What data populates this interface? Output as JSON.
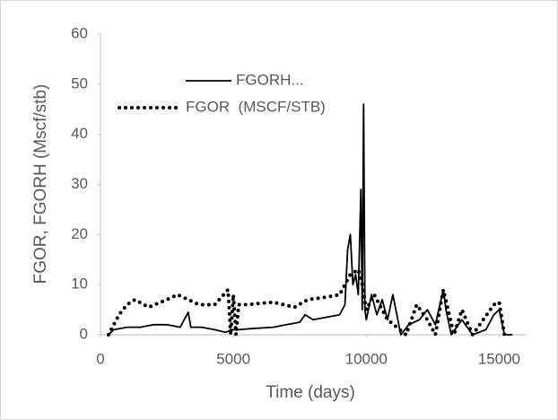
{
  "chart_data": {
    "type": "line",
    "xlabel": "Time (days)",
    "ylabel": "FGOR, FGORH (Mscf/stb)",
    "xlim": [
      0,
      16000
    ],
    "xticks": [
      0,
      5000,
      10000,
      15000
    ],
    "ylim": [
      0,
      60
    ],
    "yticks": [
      0,
      10,
      20,
      30,
      40,
      50,
      60
    ],
    "grid": false,
    "series": [
      {
        "name": "FGORH...",
        "color": "#000000",
        "dash": "solid",
        "x": [
          300,
          500,
          1000,
          1500,
          2000,
          2500,
          3000,
          3300,
          3400,
          3800,
          4300,
          4700,
          5000,
          5200,
          5600,
          6500,
          7000,
          7500,
          7700,
          8000,
          8500,
          9000,
          9200,
          9300,
          9400,
          9500,
          9600,
          9700,
          9800,
          9850,
          9900,
          9950,
          10000,
          10200,
          10400,
          10600,
          10800,
          11000,
          11300,
          11600,
          12000,
          12300,
          12600,
          12900,
          13000,
          13200,
          13600,
          14000,
          14500,
          14800,
          15000,
          15200,
          15500
        ],
        "values": [
          0,
          1,
          1.5,
          1.5,
          2,
          2,
          1.5,
          4.5,
          1.5,
          1.5,
          1,
          0.5,
          1,
          1,
          1.2,
          1.5,
          2,
          2.5,
          4,
          3,
          3.5,
          4,
          6,
          17,
          20,
          10,
          12,
          8,
          29,
          5,
          46,
          5,
          3,
          8,
          4,
          7,
          3,
          8,
          0,
          2,
          3,
          5,
          2,
          9,
          5,
          0,
          3,
          0,
          1,
          4,
          5,
          0,
          0
        ]
      },
      {
        "name": "FGOR  (MSCF/STB)",
        "color": "#000000",
        "dash": "dotted",
        "x": [
          300,
          500,
          700,
          1000,
          1300,
          1800,
          2500,
          2900,
          3300,
          3700,
          4300,
          4800,
          4900,
          5000,
          5100,
          5200,
          5500,
          6500,
          7300,
          7800,
          8500,
          9000,
          9400,
          9700,
          9850,
          10000,
          10300,
          10800,
          11500,
          11900,
          12300,
          12600,
          12900,
          13300,
          13600,
          14000,
          14400,
          14800,
          15000,
          15200
        ],
        "values": [
          0,
          2,
          4,
          6,
          7,
          5.5,
          7,
          8,
          7,
          6,
          6,
          9,
          0,
          8,
          0,
          6,
          6,
          6.5,
          5.5,
          7,
          7.5,
          8,
          12,
          13,
          10,
          5,
          8,
          3,
          0,
          6,
          3,
          0,
          9,
          0,
          5,
          0,
          3,
          6,
          6.5,
          0
        ]
      }
    ]
  }
}
